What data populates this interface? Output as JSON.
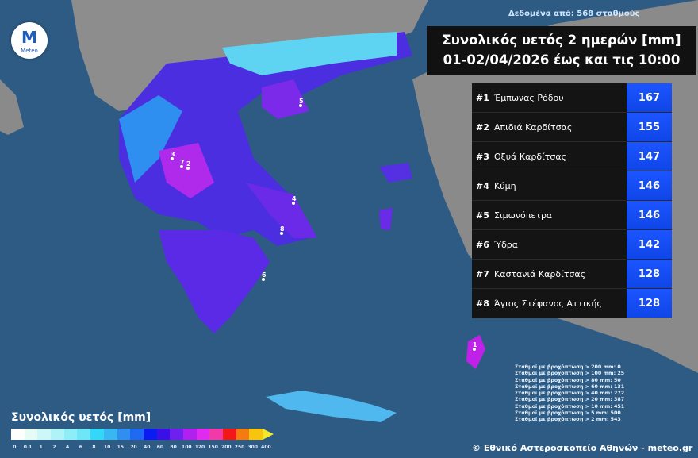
{
  "header": {
    "source": "Δεδομένα από: 568 σταθμούς",
    "title_line1": "Συνολικός υετός 2 ημερών [mm]",
    "title_line2": "01-02/04/2026 έως και τις 10:00"
  },
  "logo": {
    "text": "Meteo"
  },
  "ranking": [
    {
      "rank": "#1",
      "name": "Έμπωνας Ρόδου",
      "value": "167"
    },
    {
      "rank": "#2",
      "name": "Απιδιά Καρδίτσας",
      "value": "155"
    },
    {
      "rank": "#3",
      "name": "Οξυά Καρδίτσας",
      "value": "147"
    },
    {
      "rank": "#4",
      "name": "Κύμη",
      "value": "146"
    },
    {
      "rank": "#5",
      "name": "Σιμωνόπετρα",
      "value": "146"
    },
    {
      "rank": "#6",
      "name": "Ύδρα",
      "value": "142"
    },
    {
      "rank": "#7",
      "name": "Καστανιά Καρδίτσας",
      "value": "128"
    },
    {
      "rank": "#8",
      "name": "Άγιος Στέφανος Αττικής",
      "value": "128"
    }
  ],
  "stats": [
    "Σταθμοί με βροχόπτωση > 200 mm: 0",
    "Σταθμοί με βροχόπτωση > 100 mm: 25",
    "Σταθμοί με βροχόπτωση > 80 mm: 50",
    "Σταθμοί με βροχόπτωση > 60 mm: 131",
    "Σταθμοί με βροχόπτωση > 40 mm: 272",
    "Σταθμοί με βροχόπτωση > 20 mm: 387",
    "Σταθμοί με βροχόπτωση > 10 mm: 451",
    "Σταθμοί με βροχόπτωση > 5 mm: 500",
    "Σταθμοί με βροχόπτωση > 2 mm: 543"
  ],
  "copyright": "© Εθνικό Αστεροσκοπείο Αθηνών - meteo.gr",
  "legend": {
    "title": "Συνολικός υετός [mm]",
    "ticks": [
      "0",
      "0.1",
      "1",
      "2",
      "4",
      "6",
      "8",
      "10",
      "15",
      "20",
      "40",
      "60",
      "80",
      "100",
      "120",
      "150",
      "200",
      "250",
      "300",
      "400"
    ],
    "colors": [
      "#ffffff",
      "#e6fbf4",
      "#cdf7f7",
      "#b0f3f7",
      "#8eeef7",
      "#6fe6f7",
      "#33d7f7",
      "#38b7f2",
      "#2f8ff0",
      "#1f6af2",
      "#0b1cf0",
      "#3a10e6",
      "#7020ee",
      "#b020ee",
      "#e02af0",
      "#f03aa8",
      "#f01818",
      "#f47a12",
      "#f7c410"
    ]
  },
  "markers": [
    "1",
    "2",
    "3",
    "4",
    "5",
    "6",
    "7",
    "8"
  ]
}
